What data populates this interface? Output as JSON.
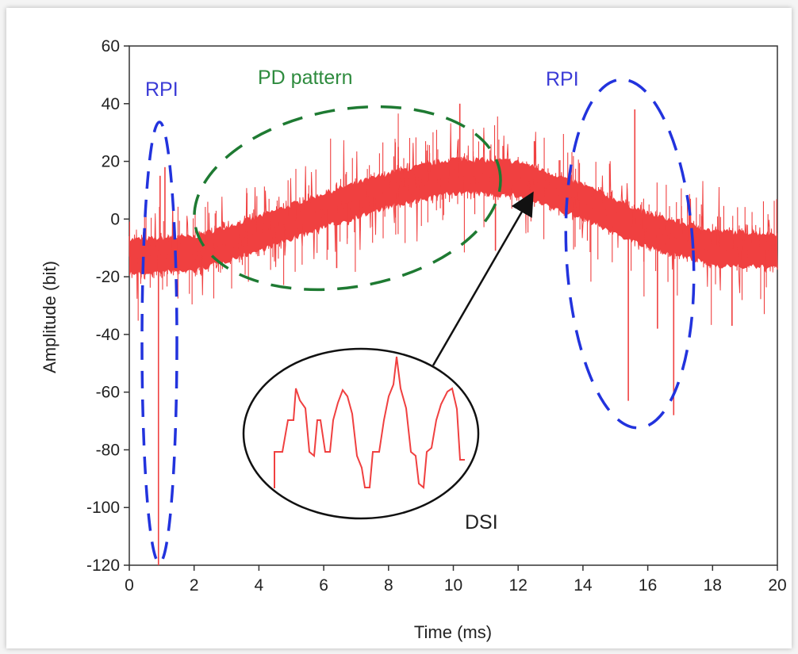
{
  "chart_data": {
    "type": "line",
    "title": "",
    "xlabel": "Time (ms)",
    "ylabel": "Amplitude (bit)",
    "xlim": [
      0,
      20
    ],
    "ylim": [
      -120,
      60
    ],
    "xticks": [
      0,
      2,
      4,
      6,
      8,
      10,
      12,
      14,
      16,
      18,
      20
    ],
    "yticks": [
      60,
      40,
      20,
      0,
      -20,
      -40,
      -60,
      -80,
      -100,
      -120
    ],
    "grid": false,
    "legend": "none",
    "series": [
      {
        "color": "#f04040",
        "baseline_x": [
          0,
          2,
          4,
          6,
          8,
          10,
          12,
          14,
          16,
          18,
          20
        ],
        "baseline_y": [
          -13,
          -12,
          -5,
          3,
          10,
          15,
          14,
          6,
          -4,
          -10,
          -11
        ],
        "spikes": [
          {
            "x": 0.9,
            "y": -120
          },
          {
            "x": 0.95,
            "y": 15
          },
          {
            "x": 1.1,
            "y": 18
          },
          {
            "x": 6.4,
            "y": -17
          },
          {
            "x": 8.3,
            "y": 25
          },
          {
            "x": 10.2,
            "y": 40
          },
          {
            "x": 11.3,
            "y": -11
          },
          {
            "x": 12.5,
            "y": 27
          },
          {
            "x": 15.4,
            "y": -63
          },
          {
            "x": 15.6,
            "y": 38
          },
          {
            "x": 16.3,
            "y": -38
          },
          {
            "x": 16.8,
            "y": -68
          },
          {
            "x": 18.6,
            "y": -37
          }
        ]
      }
    ],
    "annotations": [
      {
        "text": "RPI",
        "color": "#3b3bd6"
      },
      {
        "text": "PD pattern",
        "color": "#2e8b3e"
      },
      {
        "text": "RPI",
        "color": "#3b3bd6"
      },
      {
        "text": "DSI",
        "color": "#222222"
      }
    ]
  }
}
